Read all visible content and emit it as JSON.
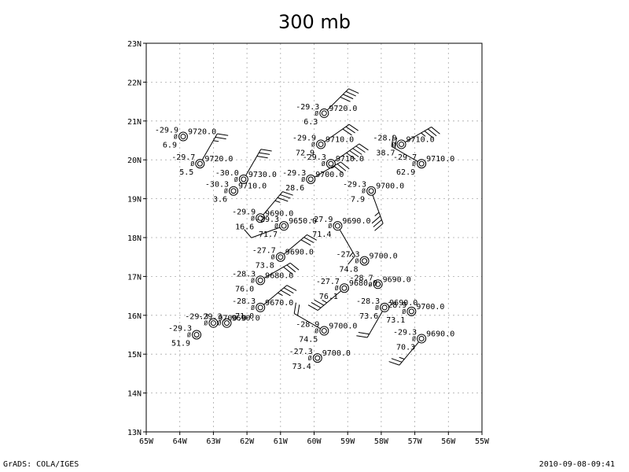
{
  "title": "300 mb",
  "footer_left": "GrADS: COLA/IGES",
  "footer_right": "2010-09-08-09:41",
  "map": {
    "lon_range": [
      -65,
      -55
    ],
    "lat_range": [
      13,
      23
    ],
    "x_ticks": [
      "65W",
      "64W",
      "63W",
      "62W",
      "61W",
      "60W",
      "59W",
      "58W",
      "57W",
      "56W",
      "55W"
    ],
    "y_ticks": [
      "13N",
      "14N",
      "15N",
      "16N",
      "17N",
      "18N",
      "19N",
      "20N",
      "21N",
      "22N",
      "23N"
    ],
    "grid": true,
    "background": "#ffffff",
    "ink": "#000000"
  },
  "stations": [
    {
      "lon": -59.7,
      "lat": 21.2,
      "temp": "-29.3",
      "pres": "9720.0",
      "val": "6.3",
      "wdir": 45,
      "wspd": 40
    },
    {
      "lon": -63.9,
      "lat": 20.6,
      "temp": "-29.9",
      "pres": "9720.0",
      "val": "6.9",
      "wdir": 0,
      "wspd": 0
    },
    {
      "lon": -59.8,
      "lat": 20.4,
      "temp": "-29.9",
      "pres": "9710.0",
      "val": "72.9",
      "wdir": 55,
      "wspd": 30
    },
    {
      "lon": -57.4,
      "lat": 20.4,
      "temp": "-28.9",
      "pres": "9710.0",
      "val": "38.7",
      "wdir": 60,
      "wspd": 35
    },
    {
      "lon": -63.4,
      "lat": 19.9,
      "temp": "-29.7",
      "pres": "9720.0",
      "val": "5.5",
      "wdir": 30,
      "wspd": 25
    },
    {
      "lon": -59.5,
      "lat": 19.9,
      "temp": "-29.3",
      "pres": "9710.0",
      "val": "",
      "wdir": 55,
      "wspd": 50
    },
    {
      "lon": -56.8,
      "lat": 19.9,
      "temp": "-29.7",
      "pres": "9710.0",
      "val": "62.9",
      "wdir": 300,
      "wspd": 20
    },
    {
      "lon": -62.1,
      "lat": 19.5,
      "temp": "-30.0",
      "pres": "9730.0",
      "val": "",
      "wdir": 30,
      "wspd": 30
    },
    {
      "lon": -60.1,
      "lat": 19.5,
      "temp": "-29.3",
      "pres": "9700.0",
      "val": "28.6",
      "wdir": 60,
      "wspd": 30
    },
    {
      "lon": -62.4,
      "lat": 19.2,
      "temp": "-30.3",
      "pres": "9710.0",
      "val": "3.6",
      "wdir": 0,
      "wspd": 0
    },
    {
      "lon": -58.3,
      "lat": 19.2,
      "temp": "-29.3",
      "pres": "9700.0",
      "val": "7.9",
      "wdir": 160,
      "wspd": 35
    },
    {
      "lon": -61.6,
      "lat": 18.5,
      "temp": "-29.9",
      "pres": "9690.0",
      "val": "16.6",
      "wdir": 40,
      "wspd": 35
    },
    {
      "lon": -60.9,
      "lat": 18.3,
      "temp": "-29.3",
      "pres": "9650.0",
      "val": "71.7",
      "wdir": 250,
      "wspd": 10
    },
    {
      "lon": -59.3,
      "lat": 18.3,
      "temp": "-27.9",
      "pres": "9690.0",
      "val": "71.4",
      "wdir": 150,
      "wspd": 15
    },
    {
      "lon": -61.0,
      "lat": 17.5,
      "temp": "-27.7",
      "pres": "9690.0",
      "val": "73.8",
      "wdir": 50,
      "wspd": 30
    },
    {
      "lon": -58.5,
      "lat": 17.4,
      "temp": "-27.3",
      "pres": "9700.0",
      "val": "74.8",
      "wdir": 0,
      "wspd": 0
    },
    {
      "lon": -61.6,
      "lat": 16.9,
      "temp": "-28.3",
      "pres": "9680.0",
      "val": "76.0",
      "wdir": 60,
      "wspd": 30
    },
    {
      "lon": -58.1,
      "lat": 16.8,
      "temp": "-28.7",
      "pres": "9690.0",
      "val": "",
      "wdir": 0,
      "wspd": 0
    },
    {
      "lon": -59.1,
      "lat": 16.7,
      "temp": "-27.7",
      "pres": "9680.0",
      "val": "76.1",
      "wdir": 230,
      "wspd": 35
    },
    {
      "lon": -61.6,
      "lat": 16.2,
      "temp": "-28.3",
      "pres": "9670.0",
      "val": "71.0",
      "wdir": 50,
      "wspd": 35
    },
    {
      "lon": -57.9,
      "lat": 16.2,
      "temp": "-28.3",
      "pres": "9690.0",
      "val": "73.6",
      "wdir": 210,
      "wspd": 20
    },
    {
      "lon": -57.1,
      "lat": 16.1,
      "temp": "-28.9",
      "pres": "9700.0",
      "val": "73.1",
      "wdir": 0,
      "wspd": 0
    },
    {
      "lon": -62.6,
      "lat": 15.8,
      "temp": "-29.3",
      "pres": "9690.0",
      "val": "",
      "wdir": 0,
      "wspd": 0
    },
    {
      "lon": -63.0,
      "lat": 15.8,
      "temp": "-29.3",
      "pres": "9700.0",
      "val": "",
      "wdir": 0,
      "wspd": 0
    },
    {
      "lon": -63.5,
      "lat": 15.5,
      "temp": "-29.3",
      "pres": "",
      "val": "51.9",
      "wdir": 0,
      "wspd": 0
    },
    {
      "lon": -59.7,
      "lat": 15.6,
      "temp": "-28.9",
      "pres": "9700.0",
      "val": "74.5",
      "wdir": 300,
      "wspd": 20
    },
    {
      "lon": -56.8,
      "lat": 15.4,
      "temp": "-29.3",
      "pres": "9690.0",
      "val": "70.3",
      "wdir": 220,
      "wspd": 25
    },
    {
      "lon": -59.9,
      "lat": 14.9,
      "temp": "-27.3",
      "pres": "9700.0",
      "val": "73.4",
      "wdir": 0,
      "wspd": 0
    }
  ]
}
